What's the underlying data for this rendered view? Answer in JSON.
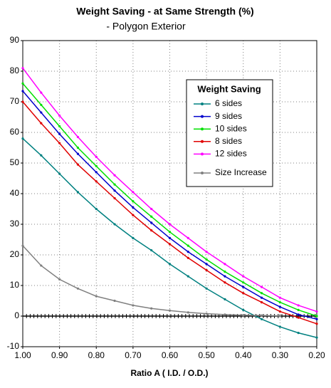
{
  "chart_data": {
    "type": "line",
    "title": "Weight Saving - at Same Strength (%)",
    "subtitle": "- Polygon Exterior",
    "x_label": "Ratio A ( I.D. / O.D.)",
    "legend_title": "Weight Saving",
    "legend": "upper right",
    "grid": true,
    "hline": 0,
    "x": [
      1.0,
      0.95,
      0.9,
      0.85,
      0.8,
      0.75,
      0.7,
      0.65,
      0.6,
      0.55,
      0.5,
      0.45,
      0.4,
      0.35,
      0.3,
      0.25,
      0.2
    ],
    "xlim": [
      1.0,
      0.2
    ],
    "xticks": [
      {
        "value": 1.0,
        "label": "1.00"
      },
      {
        "value": 0.9,
        "label": "0.90"
      },
      {
        "value": 0.8,
        "label": "0.80"
      },
      {
        "value": 0.7,
        "label": "0.70"
      },
      {
        "value": 0.6,
        "label": "0.60"
      },
      {
        "value": 0.5,
        "label": "0.50"
      },
      {
        "value": 0.4,
        "label": "0.40"
      },
      {
        "value": 0.3,
        "label": "0.30"
      },
      {
        "value": 0.2,
        "label": "0.20"
      }
    ],
    "ylim": [
      -10,
      90
    ],
    "yticks": [
      -10,
      0,
      10,
      20,
      30,
      40,
      50,
      60,
      70,
      80,
      90
    ],
    "series": [
      {
        "name": "6 sides",
        "color": "#008080",
        "values": [
          58,
          52.5,
          46.5,
          40.5,
          35,
          30,
          25.5,
          21.5,
          17,
          13,
          9,
          5.5,
          2,
          -1,
          -3.5,
          -5.5,
          -7
        ]
      },
      {
        "name": "9 sides",
        "color": "#0000cc",
        "values": [
          73.5,
          66.5,
          59.5,
          53,
          47,
          41,
          35.5,
          30.5,
          25.5,
          21,
          17,
          13,
          9.5,
          6,
          3,
          0.5,
          -1
        ]
      },
      {
        "name": "10 sides",
        "color": "#00e000",
        "values": [
          76,
          69,
          62,
          55,
          49,
          43,
          37.5,
          32.5,
          27.5,
          23,
          18.5,
          14.5,
          11,
          7.5,
          4.5,
          2,
          0
        ]
      },
      {
        "name": "8 sides",
        "color": "#e00000",
        "values": [
          70,
          63,
          56.5,
          49.5,
          44,
          38.5,
          33,
          28,
          23.5,
          19,
          15,
          11,
          7.5,
          4.5,
          1.5,
          -0.5,
          -2.5
        ]
      },
      {
        "name": "12 sides",
        "color": "#ff00ff",
        "values": [
          81,
          73,
          65.5,
          58.5,
          52,
          46,
          40.5,
          35,
          30,
          25.5,
          21,
          17,
          13,
          9.5,
          6,
          3.5,
          1.5
        ]
      },
      {
        "name": "Size Increase",
        "color": "#808080",
        "values": [
          23,
          16.5,
          12,
          9,
          6.5,
          5,
          3.5,
          2.5,
          1.8,
          1.2,
          0.8,
          0.5,
          0.3,
          0.2,
          0.1,
          null,
          null
        ]
      }
    ]
  }
}
